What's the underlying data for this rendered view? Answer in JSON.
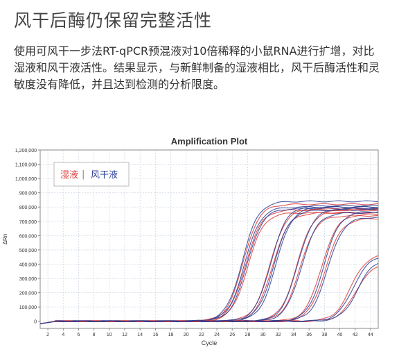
{
  "heading": "风干后酶仍保留完整活性",
  "description": "使用可风干一步法RT-qPCR预混液对10倍稀释的小鼠RNA进行扩增，对比湿液和风干液活性。结果显示，与新鲜制备的湿液相比，风干后酶活性和灵敏度没有降低，并且达到检测的分析限度。",
  "colors": {
    "wet": "#d93a3a",
    "dry": "#2b3f95",
    "axis": "#888888",
    "grid": "#cfd8e6"
  },
  "chart_data": {
    "type": "line",
    "title": "Amplification Plot",
    "xlabel": "Cycle",
    "ylabel": "ΔRn",
    "xlim": [
      1,
      45
    ],
    "ylim": [
      -50000,
      1200000
    ],
    "x_ticks": [
      2,
      4,
      6,
      8,
      10,
      12,
      14,
      16,
      18,
      20,
      22,
      24,
      26,
      28,
      30,
      32,
      34,
      36,
      38,
      40,
      42,
      44
    ],
    "y_ticks": [
      0,
      100000,
      200000,
      300000,
      400000,
      500000,
      600000,
      700000,
      800000,
      900000,
      1000000,
      1100000,
      1200000
    ],
    "y_tick_labels": [
      "0",
      "100,000",
      "200,000",
      "300,000",
      "400,000",
      "500,000",
      "600,000",
      "700,000",
      "800,000",
      "900,000",
      "1,000,000",
      "1,100,000",
      "1,200,000"
    ],
    "grid": true,
    "legend": {
      "position": "top-left",
      "wet_label": "湿液",
      "separator": "|",
      "dry_label": "风干液"
    },
    "series": [
      {
        "group": "wet",
        "ct": 25.0,
        "plateau": 820000
      },
      {
        "group": "wet",
        "ct": 25.3,
        "plateau": 780000
      },
      {
        "group": "wet",
        "ct": 25.6,
        "plateau": 760000
      },
      {
        "group": "dry",
        "ct": 24.9,
        "plateau": 840000
      },
      {
        "group": "dry",
        "ct": 25.2,
        "plateau": 800000
      },
      {
        "group": "dry",
        "ct": 25.5,
        "plateau": 790000
      },
      {
        "group": "wet",
        "ct": 28.5,
        "plateau": 790000
      },
      {
        "group": "wet",
        "ct": 28.8,
        "plateau": 760000
      },
      {
        "group": "dry",
        "ct": 28.6,
        "plateau": 810000
      },
      {
        "group": "dry",
        "ct": 29.0,
        "plateau": 780000
      },
      {
        "group": "dry",
        "ct": 29.3,
        "plateau": 800000
      },
      {
        "group": "wet",
        "ct": 32.0,
        "plateau": 780000
      },
      {
        "group": "wet",
        "ct": 32.4,
        "plateau": 740000
      },
      {
        "group": "dry",
        "ct": 32.1,
        "plateau": 790000
      },
      {
        "group": "dry",
        "ct": 32.6,
        "plateau": 760000
      },
      {
        "group": "wet",
        "ct": 35.2,
        "plateau": 750000
      },
      {
        "group": "wet",
        "ct": 35.7,
        "plateau": 720000
      },
      {
        "group": "dry",
        "ct": 35.5,
        "plateau": 770000
      },
      {
        "group": "dry",
        "ct": 36.0,
        "plateau": 730000
      },
      {
        "group": "wet",
        "ct": 39.0,
        "plateau": 470000
      },
      {
        "group": "wet",
        "ct": 39.6,
        "plateau": 400000
      },
      {
        "group": "dry",
        "ct": 39.3,
        "plateau": 460000
      },
      {
        "group": "dry",
        "ct": 39.9,
        "plateau": 440000
      }
    ]
  }
}
